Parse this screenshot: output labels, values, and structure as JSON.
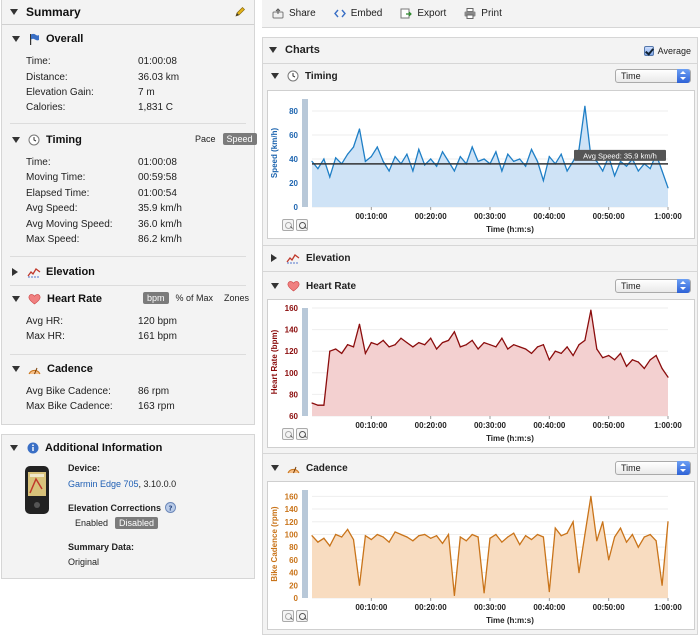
{
  "summary": {
    "title": "Summary",
    "overall": {
      "title": "Overall",
      "rows": [
        {
          "k": "Time:",
          "v": "01:00:08"
        },
        {
          "k": "Distance:",
          "v": "36.03 km"
        },
        {
          "k": "Elevation Gain:",
          "v": "7 m"
        },
        {
          "k": "Calories:",
          "v": "1,831 C"
        }
      ]
    },
    "timing": {
      "title": "Timing",
      "toggle": [
        "Pace",
        "Speed"
      ],
      "rows": [
        {
          "k": "Time:",
          "v": "01:00:08"
        },
        {
          "k": "Moving Time:",
          "v": "00:59:58"
        },
        {
          "k": "Elapsed Time:",
          "v": "01:00:54"
        },
        {
          "k": "Avg Speed:",
          "v": "35.9 km/h"
        },
        {
          "k": "Avg Moving Speed:",
          "v": "36.0 km/h"
        },
        {
          "k": "Max Speed:",
          "v": "86.2 km/h"
        }
      ]
    },
    "elevation": {
      "title": "Elevation"
    },
    "heart_rate": {
      "title": "Heart Rate",
      "toggle": [
        "bpm",
        "% of Max",
        "Zones"
      ],
      "rows": [
        {
          "k": "Avg HR:",
          "v": "120 bpm"
        },
        {
          "k": "Max HR:",
          "v": "161 bpm"
        }
      ]
    },
    "cadence": {
      "title": "Cadence",
      "rows": [
        {
          "k": "Avg Bike Cadence:",
          "v": "86 rpm"
        },
        {
          "k": "Max Bike Cadence:",
          "v": "163 rpm"
        }
      ]
    }
  },
  "additional": {
    "title": "Additional Information",
    "device_label": "Device:",
    "device_link": "Garmin Edge 705",
    "device_version": ", 3.10.0.0",
    "elev_corr_label": "Elevation Corrections",
    "elev_toggle": [
      "Enabled",
      "Disabled"
    ],
    "summary_data_label": "Summary Data:",
    "summary_data_value": "Original"
  },
  "toolbar": {
    "share": "Share",
    "embed": "Embed",
    "export": "Export",
    "print": "Print"
  },
  "charts": {
    "title": "Charts",
    "average_label": "Average",
    "timing_title": "Timing",
    "elevation_title": "Elevation",
    "heart_title": "Heart Rate",
    "cadence_title": "Cadence",
    "select_value": "Time"
  },
  "colors": {
    "speed": "#1f7fc6",
    "heart": "#8b0d0d",
    "cadence": "#c9741a"
  },
  "chart_data": [
    {
      "type": "area",
      "ylabel": "Speed (km/h)",
      "xlabel": "Time (h:m:s)",
      "xticks": [
        "00:10:00",
        "00:20:00",
        "00:30:00",
        "00:40:00",
        "00:50:00",
        "1:00:00"
      ],
      "ylim": [
        0,
        90
      ],
      "yticks": [
        0,
        20,
        40,
        60,
        80
      ],
      "x_minutes": [
        0,
        1,
        2,
        3,
        4,
        5,
        6,
        7,
        8,
        9,
        10,
        11,
        12,
        13,
        14,
        15,
        16,
        17,
        18,
        19,
        20,
        21,
        22,
        23,
        24,
        25,
        26,
        27,
        28,
        29,
        30,
        31,
        32,
        33,
        34,
        35,
        36,
        37,
        38,
        39,
        40,
        41,
        42,
        43,
        44,
        45,
        46,
        47,
        48,
        49,
        50,
        51,
        52,
        53,
        54,
        55,
        56,
        57,
        58,
        59,
        60
      ],
      "values": [
        38,
        32,
        40,
        25,
        41,
        36,
        44,
        50,
        65,
        38,
        42,
        50,
        38,
        30,
        42,
        36,
        44,
        30,
        48,
        35,
        40,
        34,
        46,
        38,
        30,
        42,
        36,
        50,
        38,
        40,
        36,
        46,
        30,
        44,
        38,
        40,
        34,
        48,
        38,
        22,
        42,
        36,
        44,
        30,
        38,
        48,
        84,
        42,
        38,
        30,
        42,
        26,
        38,
        34,
        40,
        30,
        36,
        32,
        44,
        30,
        16
      ],
      "avg_line": {
        "value": 35.9,
        "label": "Avg Speed: 35.9 km/h"
      }
    },
    {
      "type": "area",
      "ylabel": "Heart Rate (bpm)",
      "xlabel": "Time (h:m:s)",
      "xticks": [
        "00:10:00",
        "00:20:00",
        "00:30:00",
        "00:40:00",
        "00:50:00",
        "1:00:00"
      ],
      "ylim": [
        60,
        160
      ],
      "yticks": [
        60,
        80,
        100,
        120,
        140,
        160
      ],
      "x_minutes": [
        0,
        1,
        2,
        3,
        4,
        5,
        6,
        7,
        8,
        9,
        10,
        11,
        12,
        13,
        14,
        15,
        16,
        17,
        18,
        19,
        20,
        21,
        22,
        23,
        24,
        25,
        26,
        27,
        28,
        29,
        30,
        31,
        32,
        33,
        34,
        35,
        36,
        37,
        38,
        39,
        40,
        41,
        42,
        43,
        44,
        45,
        46,
        47,
        48,
        49,
        50,
        51,
        52,
        53,
        54,
        55,
        56,
        57,
        58,
        59,
        60
      ],
      "values": [
        72,
        70,
        70,
        120,
        122,
        118,
        126,
        124,
        145,
        118,
        128,
        126,
        130,
        124,
        126,
        132,
        128,
        124,
        128,
        126,
        132,
        122,
        128,
        130,
        138,
        124,
        126,
        130,
        122,
        128,
        126,
        124,
        132,
        122,
        126,
        124,
        122,
        118,
        124,
        126,
        112,
        120,
        118,
        124,
        116,
        126,
        130,
        158,
        122,
        114,
        116,
        112,
        118,
        106,
        112,
        110,
        104,
        112,
        116,
        104,
        96
      ],
      "avg_label_hidden": true
    },
    {
      "type": "area",
      "ylabel": "Bike Cadence (rpm)",
      "xlabel": "Time (h:m:s)",
      "xticks": [
        "00:10:00",
        "00:20:00",
        "00:30:00",
        "00:40:00",
        "00:50:00",
        "1:00:00"
      ],
      "ylim": [
        0,
        170
      ],
      "yticks": [
        0,
        20,
        40,
        60,
        80,
        100,
        120,
        140,
        160
      ],
      "x_minutes": [
        0,
        1,
        2,
        3,
        4,
        5,
        6,
        7,
        8,
        9,
        10,
        11,
        12,
        13,
        14,
        15,
        16,
        17,
        18,
        19,
        20,
        21,
        22,
        23,
        24,
        25,
        26,
        27,
        28,
        29,
        30,
        31,
        32,
        33,
        34,
        35,
        36,
        37,
        38,
        39,
        40,
        41,
        42,
        43,
        44,
        45,
        46,
        47,
        48,
        49,
        50,
        51,
        52,
        53,
        54,
        55,
        56,
        57,
        58,
        59,
        60
      ],
      "values": [
        98,
        88,
        94,
        82,
        100,
        96,
        108,
        92,
        20,
        98,
        92,
        100,
        96,
        88,
        104,
        100,
        96,
        90,
        98,
        100,
        94,
        98,
        86,
        100,
        4,
        96,
        90,
        100,
        96,
        8,
        94,
        100,
        88,
        96,
        102,
        84,
        98,
        92,
        100,
        96,
        10,
        110,
        98,
        102,
        120,
        40,
        100,
        160,
        90,
        120,
        60,
        96,
        110,
        88,
        100,
        80,
        96,
        100,
        90,
        20,
        120
      ]
    }
  ]
}
